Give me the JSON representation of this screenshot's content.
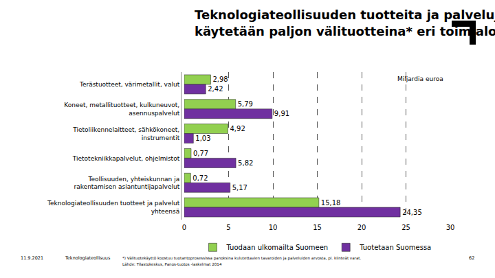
{
  "chart_data": {
    "type": "bar",
    "orientation": "horizontal",
    "title": "Teknologiateollisuuden tuotteita ja palveluja\nkäytetään paljon välituotteina* eri toimialoilla",
    "categories": [
      "Terästuotteet, värimetallit, valut",
      "Koneet, metallituotteet, kulkuneuvot,\nasennuspalvelut",
      "Tietoliikennelaitteet, sähkökoneet,\ninstrumentit",
      "Tietotekniikkapalvelut, ohjelmistot",
      "Teollisuuden, yhteiskunnan ja\nrakentamisen asiantuntijapalvelut",
      "Teknologiateollisuuden tuotteet ja palvelut\nyhteensä"
    ],
    "series": [
      {
        "name": "Tuodaan ulkomailta Suomeen",
        "color": "#92d050",
        "values": [
          2.98,
          5.79,
          4.92,
          0.77,
          0.72,
          15.18
        ],
        "value_labels": [
          "2,98",
          "5,79",
          "4,92",
          "0,77",
          "0,72",
          "15,18"
        ]
      },
      {
        "name": "Tuotetaan Suomessa",
        "color": "#7030a0",
        "values": [
          2.42,
          9.91,
          1.03,
          5.82,
          5.17,
          24.35
        ],
        "value_labels": [
          "2,42",
          "9,91",
          "1,03",
          "5,82",
          "5,17",
          "24,35"
        ]
      }
    ],
    "xlim": [
      0,
      30
    ],
    "xticks": [
      0,
      5,
      10,
      15,
      20,
      25,
      30
    ],
    "grid": true,
    "data_labels": true,
    "legend": "bottom",
    "annotations": {
      "unit": "Miljardia euroa",
      "date": "11.9.2021",
      "organization": "Teknologiateollisuus",
      "footnote": "*) Välituotekäyttö koostuu tuotantoprosessissa panoksina kulutettavien tavaroiden ja palveluiden arvosta, pl. kiinteät varat.",
      "source": "Lähde: Tilastokeskus, Panos-tuotos -laskelmat 2014",
      "page": "62"
    }
  }
}
